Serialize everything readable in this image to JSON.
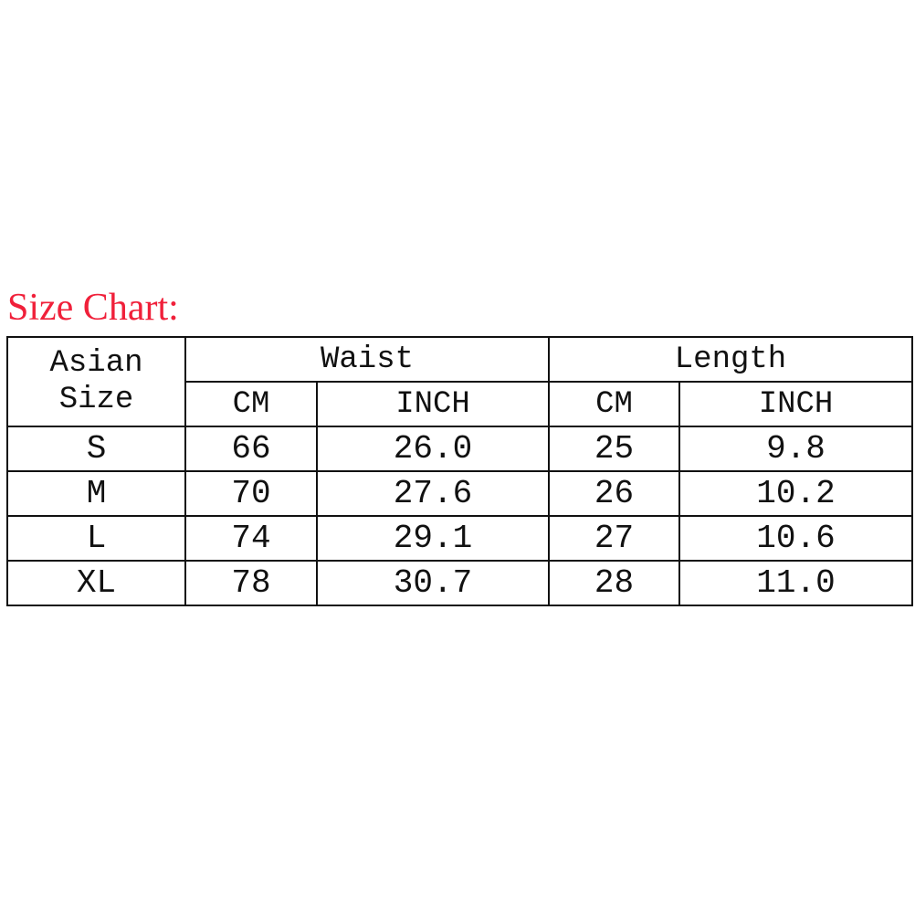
{
  "title": "Size Chart:",
  "colors": {
    "title": "#f0203a",
    "border": "#111111"
  },
  "header": {
    "size_line1": "Asian",
    "size_line2": "Size",
    "waist": "Waist",
    "length": "Length",
    "cm": "CM",
    "inch": "INCH"
  },
  "rows": [
    {
      "size": "S",
      "waist_cm": "66",
      "waist_inch": "26.0",
      "length_cm": "25",
      "length_inch": "9.8"
    },
    {
      "size": "M",
      "waist_cm": "70",
      "waist_inch": "27.6",
      "length_cm": "26",
      "length_inch": "10.2"
    },
    {
      "size": "L",
      "waist_cm": "74",
      "waist_inch": "29.1",
      "length_cm": "27",
      "length_inch": "10.6"
    },
    {
      "size": "XL",
      "waist_cm": "78",
      "waist_inch": "30.7",
      "length_cm": "28",
      "length_inch": "11.0"
    }
  ]
}
